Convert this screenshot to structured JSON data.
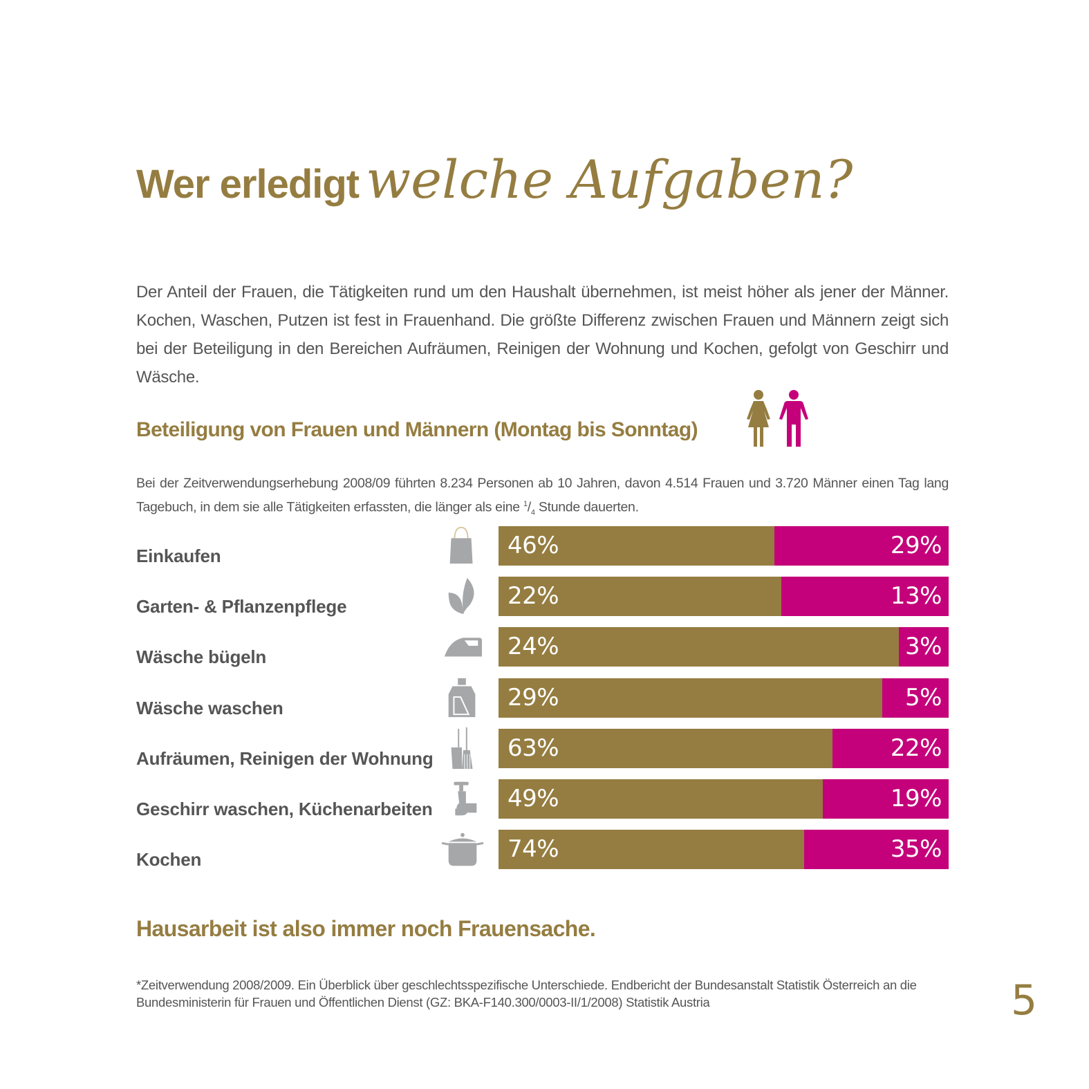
{
  "colors": {
    "gold": "#957d41",
    "magenta": "#c4007a",
    "text": "#555555",
    "icon_gray": "#a6a7a9"
  },
  "title": {
    "part1": "Wer erledigt",
    "part2": "welche Aufgaben?"
  },
  "intro": "Der Anteil der Frauen, die Tätigkeiten rund um den Haushalt übernehmen, ist meist höher als jener der Männer. Kochen, Waschen, Putzen ist fest in Frauenhand. Die größte Differenz zwischen Frauen und Männern zeigt sich bei der Beteiligung in den Bereichen Aufräumen, Reinigen der Wohnung und Kochen, gefolgt von Geschirr und Wäsche.",
  "subheading": "Beteiligung von Frauen und Männern (Montag bis Sonntag)",
  "people_icons": [
    "woman-icon",
    "man-icon"
  ],
  "note": {
    "text_before": "Bei der Zeitverwendungserhebung 2008/09 führten 8.234 Personen ab 10 Jahren, davon 4.514 Frauen und 3.720 Männer einen Tag lang Tagebuch, in dem sie alle Tätigkeiten erfassten, die länger als eine ",
    "frac_num": "1",
    "frac_sep": "/",
    "frac_den": "4",
    "text_after": " Stunde dauerten."
  },
  "chart_data": {
    "type": "bar",
    "orientation": "horizontal",
    "stacked": "split",
    "title": "Beteiligung von Frauen und Männern (Montag bis Sonntag)",
    "categories": [
      "Einkaufen",
      "Garten- & Pflanzenpflege",
      "Wäsche bügeln",
      "Wäsche waschen",
      "Aufräumen, Reinigen der Wohnung",
      "Geschirr waschen, Küchenarbeiten",
      "Kochen"
    ],
    "icons": [
      "shopping-bag-icon",
      "leaf-icon",
      "iron-icon",
      "detergent-bottle-icon",
      "broom-dustpan-icon",
      "faucet-icon",
      "cooking-pot-icon"
    ],
    "series": [
      {
        "name": "Frauen",
        "color": "#957d41",
        "values": [
          46,
          22,
          24,
          29,
          63,
          49,
          74
        ],
        "labels": [
          "46%",
          "22%",
          "24%",
          "29%",
          "63%",
          "49%",
          "74%"
        ]
      },
      {
        "name": "Männer",
        "color": "#c4007a",
        "values": [
          29,
          13,
          3,
          5,
          22,
          19,
          35
        ],
        "labels": [
          "29%",
          "13%",
          "3%",
          "5%",
          "22%",
          "19%",
          "35%"
        ]
      }
    ],
    "xlabel": "",
    "ylabel": "",
    "grid": false
  },
  "conclusion": "Hausarbeit ist also immer noch Frauensache.",
  "footnote": "*Zeitverwendung 2008/2009. Ein Überblick über geschlechtsspezifische Unterschiede. Endbericht der Bundesanstalt Statistik Österreich an die Bundesministerin für Frauen und Öffentlichen Dienst (GZ: BKA-F140.300/0003-II/1/2008) Statistik Austria",
  "page_number": "5"
}
